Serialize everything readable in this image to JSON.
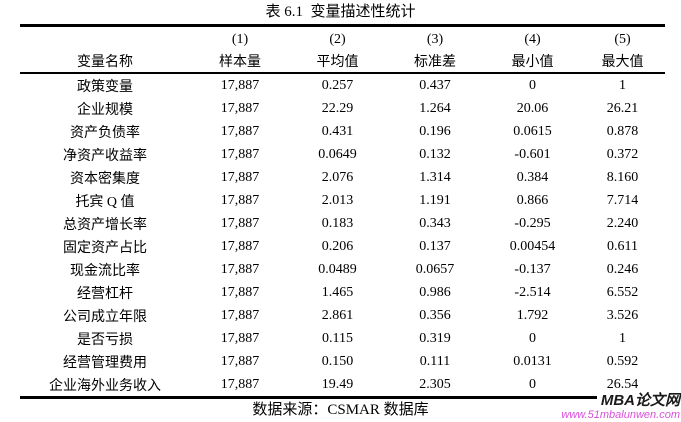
{
  "title": "表 6.1  变量描述性统计",
  "table": {
    "col_numbers": [
      "(1)",
      "(2)",
      "(3)",
      "(4)",
      "(5)"
    ],
    "headers": [
      "变量名称",
      "样本量",
      "平均值",
      "标准差",
      "最小值",
      "最大值"
    ],
    "rows": [
      {
        "name": "政策变量",
        "n": "17,887",
        "mean": "0.257",
        "sd": "0.437",
        "min": "0",
        "max": "1"
      },
      {
        "name": "企业规模",
        "n": "17,887",
        "mean": "22.29",
        "sd": "1.264",
        "min": "20.06",
        "max": "26.21"
      },
      {
        "name": "资产负债率",
        "n": "17,887",
        "mean": "0.431",
        "sd": "0.196",
        "min": "0.0615",
        "max": "0.878"
      },
      {
        "name": "净资产收益率",
        "n": "17,887",
        "mean": "0.0649",
        "sd": "0.132",
        "min": "-0.601",
        "max": "0.372"
      },
      {
        "name": "资本密集度",
        "n": "17,887",
        "mean": "2.076",
        "sd": "1.314",
        "min": "0.384",
        "max": "8.160"
      },
      {
        "name": "托宾 Q 值",
        "n": "17,887",
        "mean": "2.013",
        "sd": "1.191",
        "min": "0.866",
        "max": "7.714"
      },
      {
        "name": "总资产增长率",
        "n": "17,887",
        "mean": "0.183",
        "sd": "0.343",
        "min": "-0.295",
        "max": "2.240"
      },
      {
        "name": "固定资产占比",
        "n": "17,887",
        "mean": "0.206",
        "sd": "0.137",
        "min": "0.00454",
        "max": "0.611"
      },
      {
        "name": "现金流比率",
        "n": "17,887",
        "mean": "0.0489",
        "sd": "0.0657",
        "min": "-0.137",
        "max": "0.246"
      },
      {
        "name": "经营杠杆",
        "n": "17,887",
        "mean": "1.465",
        "sd": "0.986",
        "min": "-2.514",
        "max": "6.552"
      },
      {
        "name": "公司成立年限",
        "n": "17,887",
        "mean": "2.861",
        "sd": "0.356",
        "min": "1.792",
        "max": "3.526"
      },
      {
        "name": "是否亏损",
        "n": "17,887",
        "mean": "0.115",
        "sd": "0.319",
        "min": "0",
        "max": "1"
      },
      {
        "name": "经营管理费用",
        "n": "17,887",
        "mean": "0.150",
        "sd": "0.111",
        "min": "0.0131",
        "max": "0.592"
      },
      {
        "name": "企业海外业务收入",
        "n": "17,887",
        "mean": "19.49",
        "sd": "2.305",
        "min": "0",
        "max": "26.54"
      }
    ]
  },
  "footer": "数据来源：CSMAR 数据库",
  "watermark": {
    "site_name": "MBA论文网",
    "site_url": "www.51mbalunwen.com",
    "name_color": "#1a1a1a",
    "url_color": "#d94fd9"
  }
}
